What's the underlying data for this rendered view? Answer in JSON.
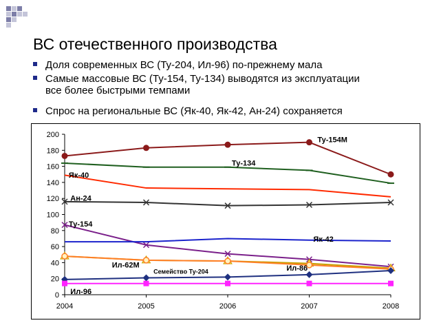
{
  "slide": {
    "title": "ВС отечественного производства",
    "bullets": [
      {
        "line1": "Доля современных ВС (Ту-204, Ил-96) по-прежнему мала",
        "line2": ""
      },
      {
        "line1": "Самые массовые ВС (Ту-154, Ту-134) выводятся из эксплуатации",
        "line2": "все более быстрыми темпами"
      },
      {
        "line1": "Спрос на региональные ВС (Як-40, Як-42, Ан-24) сохраняется",
        "line2": ""
      }
    ],
    "colors": {
      "bullet": "#1e2a8a",
      "decor": "#7d7ea8"
    }
  },
  "chart_data": {
    "type": "line",
    "title": "",
    "xlabel": "",
    "ylabel": "",
    "categories": [
      "2004",
      "2005",
      "2006",
      "2007",
      "2008"
    ],
    "ylim": [
      0,
      200
    ],
    "yticks": [
      "0",
      "20",
      "40",
      "60",
      "80",
      "100",
      "120",
      "140",
      "160",
      "180",
      "200"
    ],
    "grid": false,
    "series": [
      {
        "name": "Ту-154М",
        "color": "#8b1a1a",
        "marker": "circle",
        "values": [
          173,
          183,
          187,
          190,
          150
        ]
      },
      {
        "name": "Ту-134",
        "color": "#1f5f1f",
        "marker": "dash",
        "values": [
          164,
          159,
          159,
          155,
          139
        ]
      },
      {
        "name": "Як-40",
        "color": "#ff2a00",
        "marker": "none",
        "values": [
          149,
          133,
          132,
          131,
          122
        ]
      },
      {
        "name": "Ан-24",
        "color": "#333333",
        "marker": "x",
        "values": [
          116,
          115,
          111,
          112,
          115
        ]
      },
      {
        "name": "Ту-154",
        "color": "#7a1f8a",
        "marker": "x",
        "values": [
          87,
          62,
          51,
          44,
          35
        ]
      },
      {
        "name": "Як-42",
        "color": "#1a22cc",
        "marker": "none",
        "values": [
          66,
          66,
          70,
          68,
          67
        ]
      },
      {
        "name": "Ил-62М",
        "color": "#c8a000",
        "marker": "triangle",
        "values": [
          48,
          43,
          42,
          39,
          33
        ]
      },
      {
        "name": "Ил-86",
        "color": "#ff7f27",
        "marker": "circle-open",
        "values": [
          48,
          43,
          42,
          37,
          32
        ]
      },
      {
        "name": "Семейство Ту-204",
        "color": "#1f3080",
        "marker": "diamond",
        "values": [
          19,
          21,
          22,
          25,
          30
        ]
      },
      {
        "name": "Ил-96",
        "color": "#ff22ff",
        "marker": "square",
        "values": [
          14,
          14,
          14,
          14,
          14
        ]
      }
    ]
  }
}
